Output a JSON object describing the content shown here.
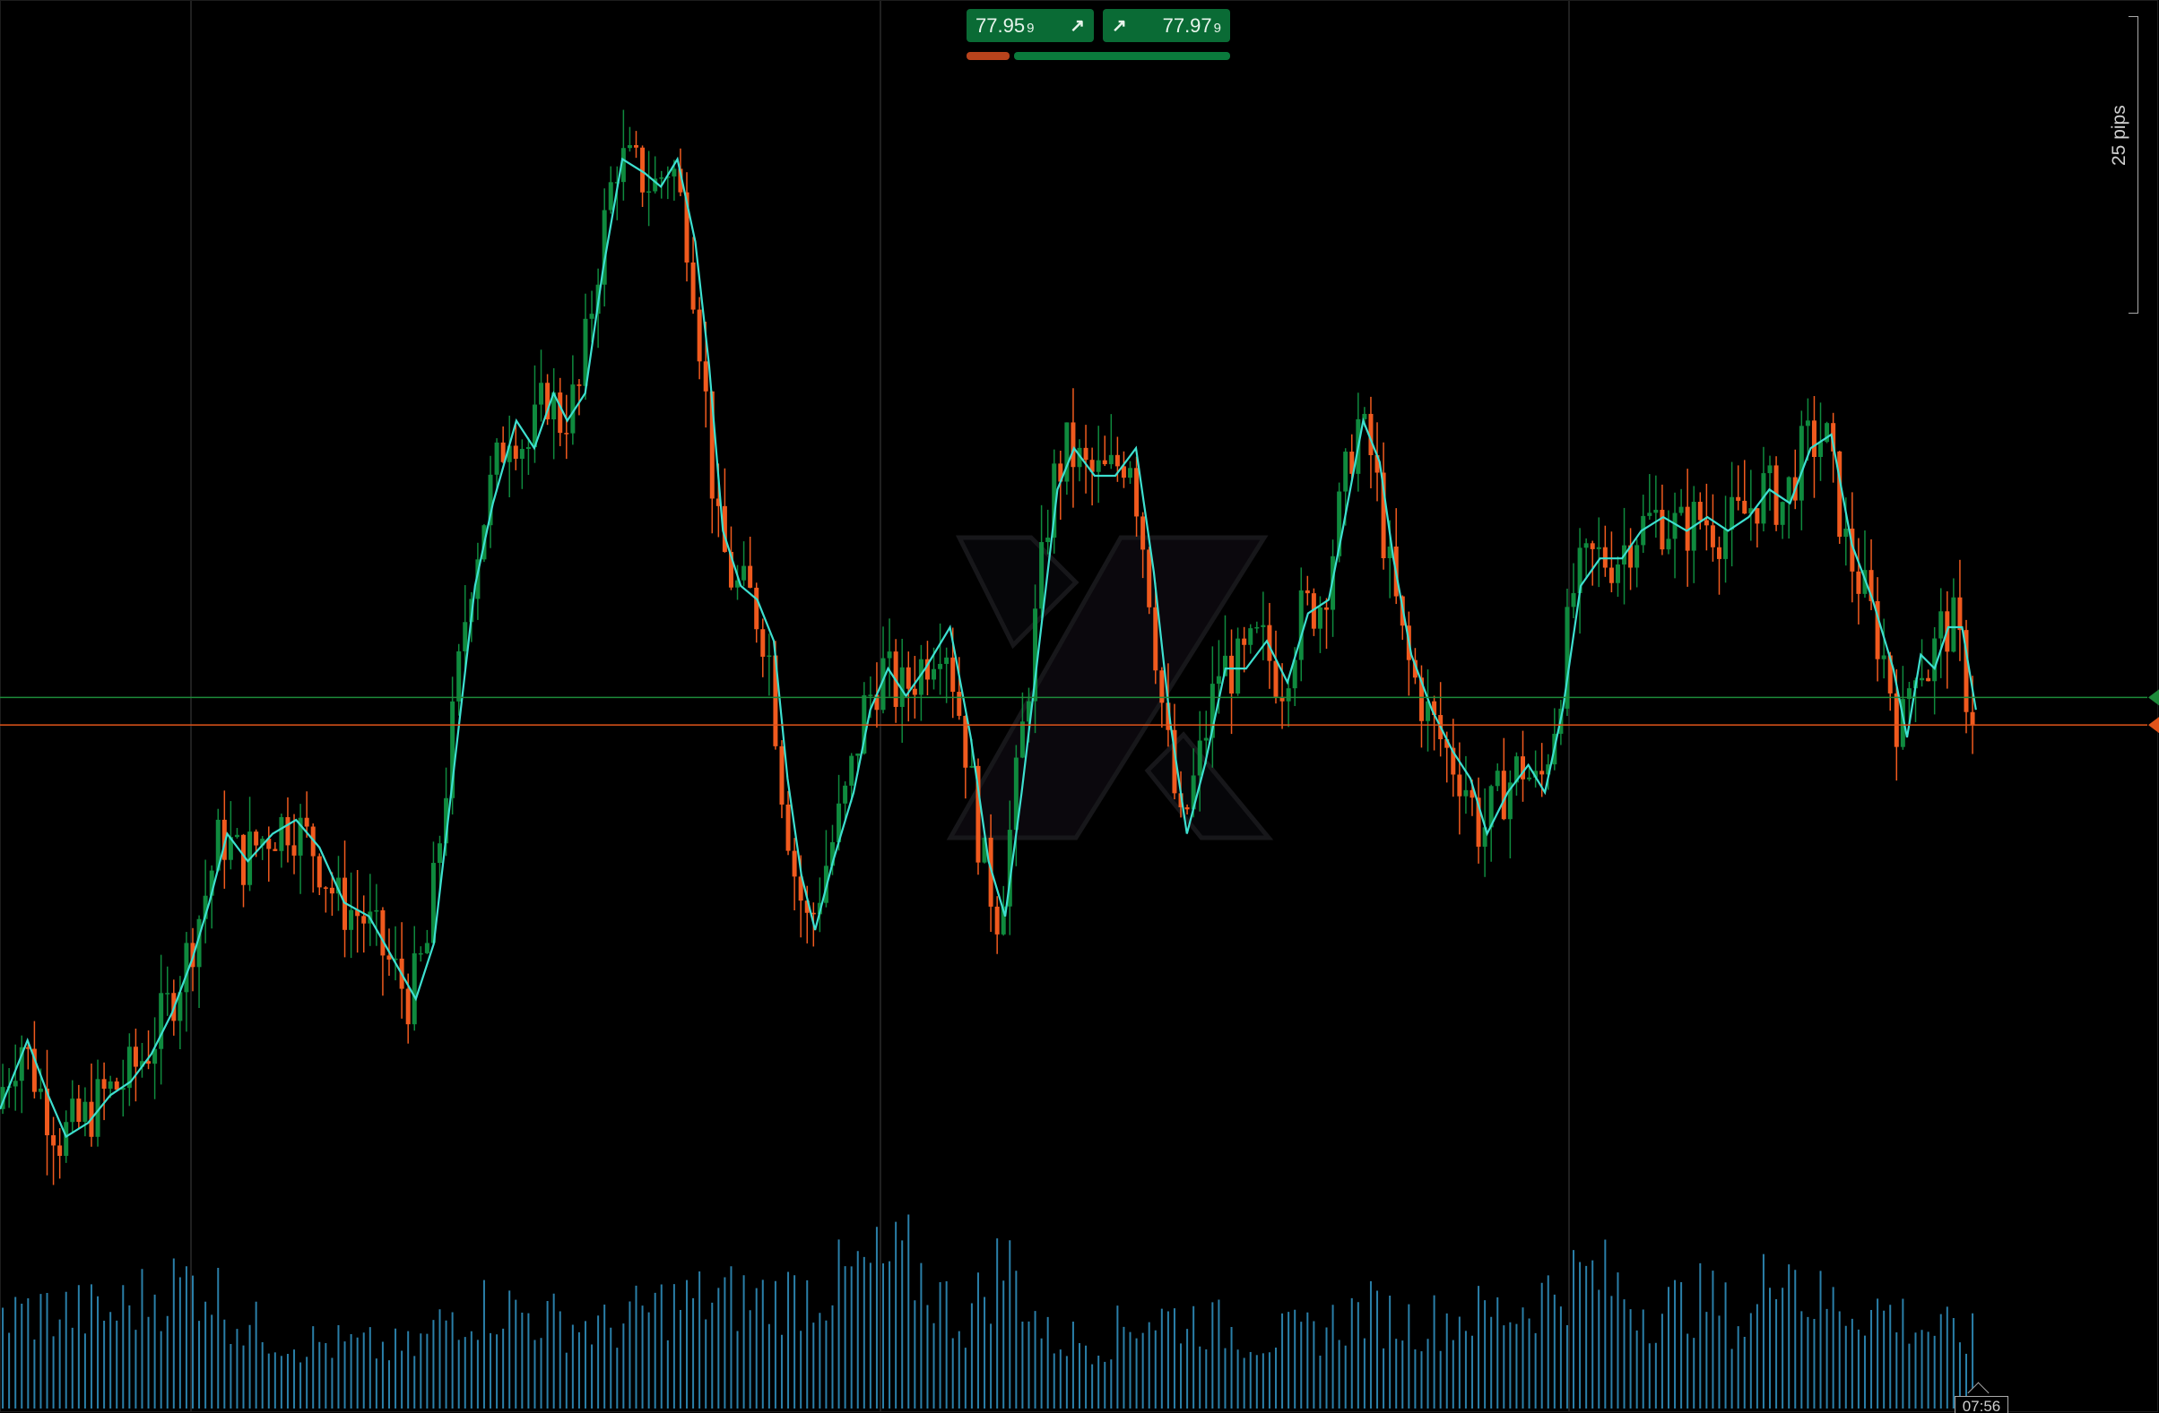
{
  "quotes": {
    "sell_price": "77.95",
    "sell_pip": "9",
    "buy_price": "77.97",
    "buy_pip": "9",
    "sell_icon": "arrow-up-right-icon",
    "buy_icon": "arrow-up-right-icon"
  },
  "scale": {
    "pips_label": "25 pips"
  },
  "time_label": "07:56",
  "colors": {
    "background": "#000000",
    "bull": "#0f8a3e",
    "bear": "#f05a1e",
    "ma_line": "#3de0d0",
    "volume": "#2a7fa8",
    "bid_line": "#1d8a3a",
    "ask_line": "#e0541a",
    "grid": "#2a2a2a"
  },
  "chart_data": {
    "type": "candlestick",
    "title": "",
    "grid": true,
    "price_range": [
      77.62,
      78.44
    ],
    "bid": 77.959,
    "ask": 77.979,
    "ma_points": [
      [
        0,
        77.68
      ],
      [
        20,
        77.73
      ],
      [
        35,
        77.69
      ],
      [
        48,
        77.66
      ],
      [
        64,
        77.67
      ],
      [
        80,
        77.69
      ],
      [
        95,
        77.7
      ],
      [
        110,
        77.72
      ],
      [
        125,
        77.75
      ],
      [
        140,
        77.79
      ],
      [
        152,
        77.83
      ],
      [
        165,
        77.88
      ],
      [
        180,
        77.86
      ],
      [
        198,
        77.88
      ],
      [
        215,
        77.89
      ],
      [
        232,
        77.87
      ],
      [
        250,
        77.83
      ],
      [
        268,
        77.82
      ],
      [
        285,
        77.79
      ],
      [
        302,
        77.76
      ],
      [
        315,
        77.8
      ],
      [
        330,
        77.93
      ],
      [
        345,
        78.06
      ],
      [
        358,
        78.12
      ],
      [
        375,
        78.18
      ],
      [
        388,
        78.16
      ],
      [
        402,
        78.2
      ],
      [
        412,
        78.18
      ],
      [
        425,
        78.2
      ],
      [
        438,
        78.29
      ],
      [
        452,
        78.37
      ],
      [
        468,
        78.36
      ],
      [
        480,
        78.35
      ],
      [
        492,
        78.37
      ],
      [
        505,
        78.31
      ],
      [
        515,
        78.22
      ],
      [
        525,
        78.1
      ],
      [
        538,
        78.06
      ],
      [
        550,
        78.05
      ],
      [
        562,
        78.02
      ],
      [
        572,
        77.92
      ],
      [
        582,
        77.85
      ],
      [
        592,
        77.81
      ],
      [
        605,
        77.86
      ],
      [
        620,
        77.91
      ],
      [
        632,
        77.97
      ],
      [
        645,
        78.0
      ],
      [
        658,
        77.98
      ],
      [
        672,
        78.0
      ],
      [
        690,
        78.03
      ],
      [
        705,
        77.95
      ],
      [
        718,
        77.86
      ],
      [
        730,
        77.82
      ],
      [
        742,
        77.91
      ],
      [
        755,
        78.02
      ],
      [
        768,
        78.13
      ],
      [
        780,
        78.16
      ],
      [
        795,
        78.14
      ],
      [
        810,
        78.14
      ],
      [
        825,
        78.16
      ],
      [
        838,
        78.07
      ],
      [
        850,
        77.96
      ],
      [
        862,
        77.88
      ],
      [
        875,
        77.93
      ],
      [
        890,
        78.0
      ],
      [
        905,
        78.0
      ],
      [
        920,
        78.02
      ],
      [
        935,
        77.99
      ],
      [
        950,
        78.04
      ],
      [
        965,
        78.05
      ],
      [
        975,
        78.1
      ],
      [
        990,
        78.18
      ],
      [
        1002,
        78.15
      ],
      [
        1012,
        78.08
      ],
      [
        1025,
        78.01
      ],
      [
        1040,
        77.97
      ],
      [
        1055,
        77.94
      ],
      [
        1068,
        77.92
      ],
      [
        1080,
        77.88
      ],
      [
        1095,
        77.91
      ],
      [
        1110,
        77.93
      ],
      [
        1122,
        77.91
      ],
      [
        1135,
        77.97
      ],
      [
        1148,
        78.06
      ],
      [
        1162,
        78.08
      ],
      [
        1178,
        78.08
      ],
      [
        1192,
        78.1
      ],
      [
        1208,
        78.11
      ],
      [
        1225,
        78.1
      ],
      [
        1240,
        78.11
      ],
      [
        1255,
        78.1
      ],
      [
        1270,
        78.11
      ],
      [
        1285,
        78.13
      ],
      [
        1300,
        78.12
      ],
      [
        1315,
        78.16
      ],
      [
        1330,
        78.17
      ],
      [
        1345,
        78.09
      ],
      [
        1360,
        78.05
      ],
      [
        1375,
        78.0
      ],
      [
        1385,
        77.95
      ],
      [
        1395,
        78.01
      ],
      [
        1405,
        78.0
      ],
      [
        1415,
        78.03
      ],
      [
        1425,
        78.03
      ],
      [
        1435,
        77.97
      ]
    ],
    "volume_profile": [
      [
        0,
        0.52
      ],
      [
        40,
        0.55
      ],
      [
        80,
        0.53
      ],
      [
        120,
        0.68
      ],
      [
        150,
        0.72
      ],
      [
        175,
        0.48
      ],
      [
        215,
        0.38
      ],
      [
        260,
        0.35
      ],
      [
        300,
        0.33
      ],
      [
        330,
        0.55
      ],
      [
        360,
        0.58
      ],
      [
        400,
        0.5
      ],
      [
        440,
        0.45
      ],
      [
        480,
        0.58
      ],
      [
        520,
        0.62
      ],
      [
        560,
        0.62
      ],
      [
        600,
        0.68
      ],
      [
        630,
        0.78
      ],
      [
        660,
        0.82
      ],
      [
        700,
        0.48
      ],
      [
        730,
        0.85
      ],
      [
        760,
        0.4
      ],
      [
        800,
        0.38
      ],
      [
        830,
        0.52
      ],
      [
        870,
        0.5
      ],
      [
        910,
        0.4
      ],
      [
        950,
        0.42
      ],
      [
        990,
        0.55
      ],
      [
        1030,
        0.48
      ],
      [
        1060,
        0.52
      ],
      [
        1100,
        0.55
      ],
      [
        1140,
        0.72
      ],
      [
        1160,
        0.75
      ],
      [
        1200,
        0.55
      ],
      [
        1240,
        0.62
      ],
      [
        1270,
        0.45
      ],
      [
        1295,
        1.0
      ],
      [
        1310,
        0.62
      ],
      [
        1340,
        0.58
      ],
      [
        1370,
        0.55
      ],
      [
        1400,
        0.45
      ],
      [
        1432,
        0.4
      ]
    ]
  }
}
